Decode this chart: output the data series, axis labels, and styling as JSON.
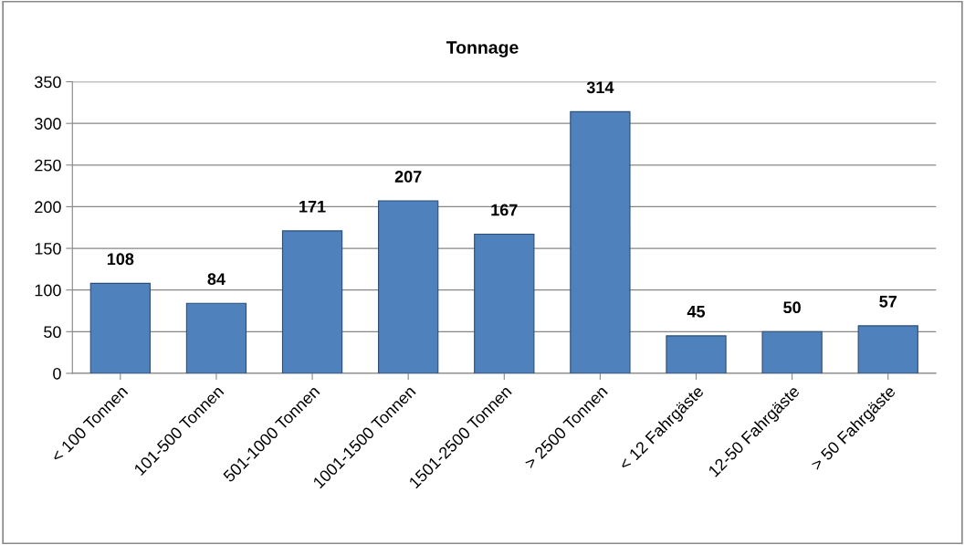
{
  "chart_data": {
    "type": "bar",
    "title": "Tonnage",
    "categories": [
      "< 100 Tonnen",
      "101-500 Tonnen",
      "501-1000 Tonnen",
      "1001-1500 Tonnen",
      "1501-2500 Tonnen",
      "> 2500 Tonnen",
      "< 12 Fahrgäste",
      "12-50 Fahrgäste",
      "> 50 Fahrgäste"
    ],
    "values": [
      108,
      84,
      171,
      207,
      167,
      314,
      45,
      50,
      57
    ],
    "color": "#4f81bd",
    "ylim": [
      0,
      350
    ],
    "yticks": [
      0,
      50,
      100,
      150,
      200,
      250,
      300,
      350
    ],
    "grid": "y",
    "data_labels": true,
    "legend": false
  }
}
